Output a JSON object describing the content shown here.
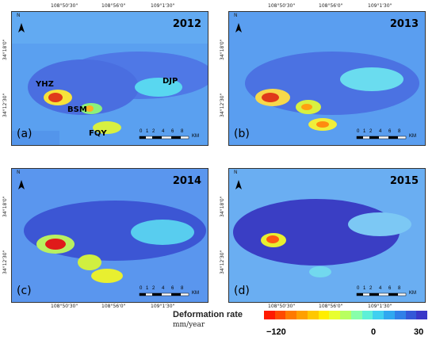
{
  "coordinates": {
    "top_left_panels": [
      "108°50'30\"",
      "108°56'0\"",
      "109°1'30\""
    ],
    "bottom_ticks": [
      "108°50'30\"",
      "108°56'0\"",
      "109°1'30\""
    ],
    "lat_ticks": [
      "34°18'0\"",
      "34°12'30\""
    ]
  },
  "panels": [
    {
      "year": "2012",
      "label": "(a)",
      "sites": [
        "YHZ",
        "BSM",
        "FQY",
        "DJP"
      ]
    },
    {
      "year": "2013",
      "label": "(b)"
    },
    {
      "year": "2014",
      "label": "(c)"
    },
    {
      "year": "2015",
      "label": "(d)"
    }
  ],
  "north_label": "N",
  "scale": {
    "ticks": [
      "0",
      "1",
      "2",
      "4",
      "6",
      "8"
    ],
    "unit": "KM"
  },
  "legend": {
    "title": "Deformation rate",
    "unit": "mm/year",
    "min_label": "−120",
    "zero_label": "0",
    "max_label": "30",
    "colors": [
      "#ff1a00",
      "#ff4a00",
      "#ff7a00",
      "#ffa000",
      "#ffc800",
      "#ffee00",
      "#e8ff30",
      "#b8ff60",
      "#88ffaa",
      "#5ef0d8",
      "#40d0f0",
      "#30a8f0",
      "#3080e8",
      "#3458d8",
      "#3a38c8"
    ]
  }
}
